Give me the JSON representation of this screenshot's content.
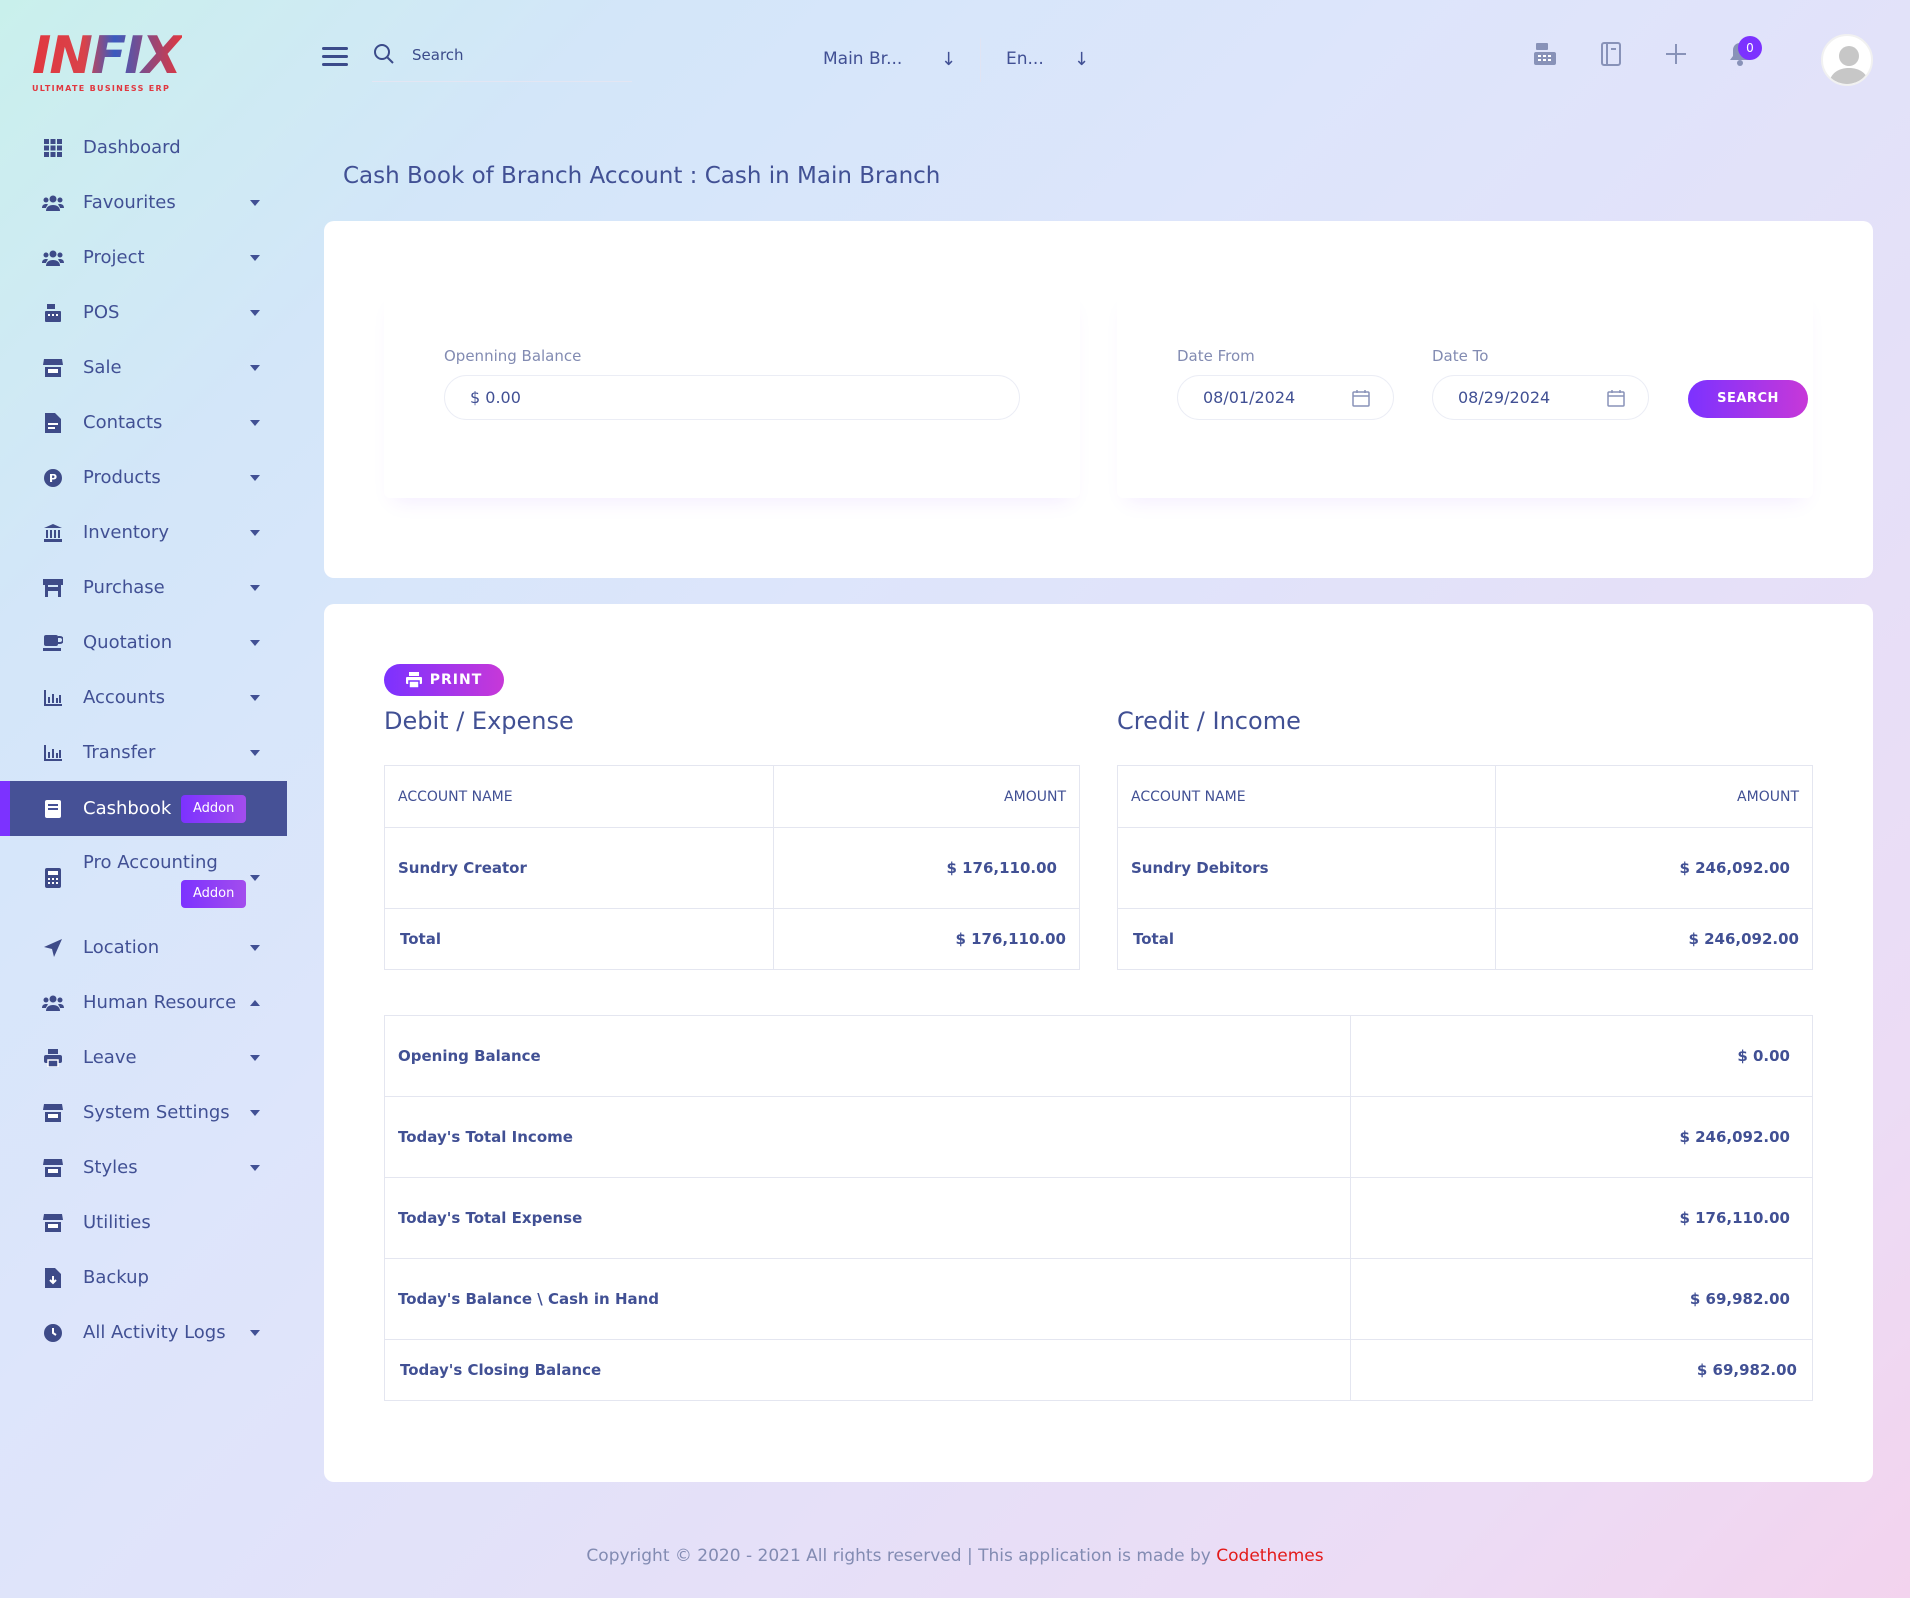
{
  "brand": {
    "logo_text": "INFIX",
    "tagline": "ULTIMATE BUSINESS ERP"
  },
  "topbar": {
    "search_placeholder": "Search",
    "branch_select": "Main Br...",
    "language_select": "En...",
    "notification_count": "0"
  },
  "sidebar": {
    "items": [
      {
        "label": "Dashboard",
        "icon": "grid-icon"
      },
      {
        "label": "Favourites",
        "icon": "users-icon"
      },
      {
        "label": "Project",
        "icon": "users-icon"
      },
      {
        "label": "POS",
        "icon": "cash-register-icon"
      },
      {
        "label": "Sale",
        "icon": "store-icon"
      },
      {
        "label": "Contacts",
        "icon": "file-icon"
      },
      {
        "label": "Products",
        "icon": "product-p-icon"
      },
      {
        "label": "Inventory",
        "icon": "bank-icon"
      },
      {
        "label": "Purchase",
        "icon": "shop-icon"
      },
      {
        "label": "Quotation",
        "icon": "coffee-icon"
      },
      {
        "label": "Accounts",
        "icon": "chart-icon"
      },
      {
        "label": "Transfer",
        "icon": "chart-icon"
      },
      {
        "label": "Cashbook",
        "icon": "book-icon",
        "badge": "Addon"
      },
      {
        "label": "Pro Accounting",
        "icon": "calculator-icon",
        "badge": "Addon"
      },
      {
        "label": "Location",
        "icon": "location-arrow-icon"
      },
      {
        "label": "Human Resource",
        "icon": "users-icon"
      },
      {
        "label": "Leave",
        "icon": "printer-icon"
      },
      {
        "label": "System Settings",
        "icon": "store-icon"
      },
      {
        "label": "Styles",
        "icon": "store-icon"
      },
      {
        "label": "Utilities",
        "icon": "store-icon"
      },
      {
        "label": "Backup",
        "icon": "file-download-icon"
      },
      {
        "label": "All Activity Logs",
        "icon": "clock-icon"
      }
    ]
  },
  "page": {
    "title": "Cash Book of Branch Account : Cash in Main Branch"
  },
  "filter": {
    "opening_label": "Openning Balance",
    "opening_value": "$ 0.00",
    "date_from_label": "Date From",
    "date_from_value": "08/01/2024",
    "date_to_label": "Date To",
    "date_to_value": "08/29/2024",
    "search_button": "SEARCH"
  },
  "report": {
    "print_button": "PRINT",
    "debit": {
      "title": "Debit / Expense",
      "headers": [
        "ACCOUNT NAME",
        "AMOUNT"
      ],
      "rows": [
        {
          "name": "Sundry Creator",
          "amount": "$ 176,110.00"
        }
      ],
      "total_label": "Total",
      "total_amount": "$ 176,110.00"
    },
    "credit": {
      "title": "Credit / Income",
      "headers": [
        "ACCOUNT NAME",
        "AMOUNT"
      ],
      "rows": [
        {
          "name": "Sundry Debitors",
          "amount": "$ 246,092.00"
        }
      ],
      "total_label": "Total",
      "total_amount": "$ 246,092.00"
    },
    "summary": [
      {
        "label": "Opening Balance",
        "value": "$ 0.00"
      },
      {
        "label": "Today's Total Income",
        "value": "$ 246,092.00"
      },
      {
        "label": "Today's Total Expense",
        "value": "$ 176,110.00"
      },
      {
        "label": "Today's Balance \\ Cash in Hand",
        "value": "$ 69,982.00"
      },
      {
        "label": "Today's Closing Balance",
        "value": "$ 69,982.00"
      }
    ]
  },
  "footer": {
    "text": "Copyright © 2020 - 2021 All rights reserved | This application is made by ",
    "brand": "Codethemes"
  },
  "colors": {
    "accent": "#7c32ff",
    "text": "#415094",
    "active_nav": "#465196",
    "footer_brand": "#e31a1a"
  }
}
